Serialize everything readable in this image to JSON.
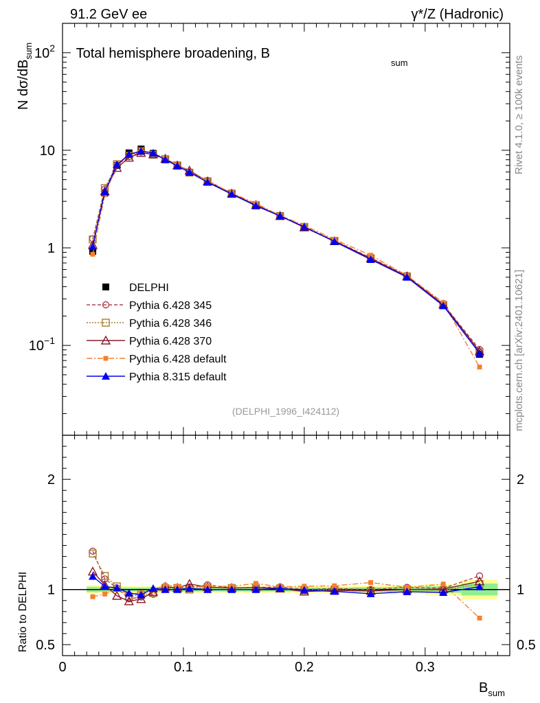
{
  "header": {
    "left": "91.2 GeV ee",
    "right": "γ*/Z (Hadronic)"
  },
  "side": {
    "rivet": "Rivet 4.1.0, ≥ 100k events",
    "mcplots": "mcplots.cern.ch [arXiv:2401.10621]"
  },
  "chart_data": {
    "type": "line",
    "title": "Total hemisphere broadening, B",
    "title_sub": "sum",
    "ylabel": "N  dσ/dB",
    "ylabel_sub": "sum",
    "xlabel": "B",
    "xlabel_sub": "sum",
    "analysis_tag": "(DELPHI_1996_I424112)",
    "xlim": [
      0,
      0.37
    ],
    "ylim": [
      0.012,
      200
    ],
    "yscale": "log",
    "x_ticks": [
      "0",
      "0.1",
      "0.2",
      "0.3"
    ],
    "y_ticks": [
      "10^-1",
      "1",
      "10",
      "10^2"
    ],
    "x": [
      0.025,
      0.035,
      0.045,
      0.055,
      0.065,
      0.075,
      0.085,
      0.095,
      0.105,
      0.12,
      0.14,
      0.16,
      0.18,
      0.2,
      0.225,
      0.255,
      0.285,
      0.315,
      0.345
    ],
    "data": {
      "name": "DELPHI",
      "values": [
        0.92,
        3.65,
        7.0,
        9.4,
        10.3,
        9.3,
        8.0,
        6.9,
        5.9,
        4.7,
        3.55,
        2.7,
        2.1,
        1.65,
        1.18,
        0.79,
        0.51,
        0.262,
        0.081
      ],
      "color": "#000000"
    },
    "series": [
      {
        "name": "Pythia 6.428 345",
        "color": "#b04050",
        "marker": "circle-open",
        "dash": "5,3",
        "values": [
          1.24,
          4.0,
          7.1,
          8.6,
          9.6,
          8.9,
          8.2,
          7.0,
          6.0,
          4.9,
          3.6,
          2.75,
          2.15,
          1.65,
          1.19,
          0.79,
          0.52,
          0.265,
          0.091
        ]
      },
      {
        "name": "Pythia 6.428 346",
        "color": "#a67a2a",
        "marker": "square-open",
        "dash": "2,2",
        "values": [
          1.22,
          4.1,
          7.2,
          8.8,
          9.8,
          9.0,
          8.1,
          7.0,
          5.9,
          4.8,
          3.6,
          2.75,
          2.12,
          1.64,
          1.18,
          0.78,
          0.51,
          0.26,
          0.085
        ]
      },
      {
        "name": "Pythia 6.428 370",
        "color": "#8b1a2a",
        "marker": "triangle-open",
        "dash": "",
        "values": [
          1.07,
          3.8,
          6.6,
          8.4,
          9.4,
          9.1,
          8.2,
          7.0,
          6.2,
          4.8,
          3.6,
          2.75,
          2.12,
          1.62,
          1.17,
          0.78,
          0.51,
          0.263,
          0.087
        ]
      },
      {
        "name": "Pythia 6.428 default",
        "color": "#f47f30",
        "marker": "square-filled",
        "dash": "8,3,2,3",
        "values": [
          0.86,
          3.5,
          7.0,
          9.0,
          10.0,
          9.3,
          8.3,
          7.1,
          6.0,
          4.85,
          3.65,
          2.85,
          2.15,
          1.7,
          1.22,
          0.84,
          0.52,
          0.275,
          0.06
        ]
      },
      {
        "name": "Pythia 8.315 default",
        "color": "#0000ee",
        "marker": "triangle-filled",
        "dash": "",
        "values": [
          1.03,
          3.75,
          7.1,
          9.1,
          9.8,
          9.4,
          8.0,
          6.9,
          5.95,
          4.7,
          3.55,
          2.7,
          2.12,
          1.64,
          1.16,
          0.76,
          0.5,
          0.255,
          0.083
        ]
      }
    ],
    "ratio": {
      "ylabel": "Ratio to DELPHI",
      "ylim": [
        0.4,
        2.4
      ],
      "y_ticks": [
        "0.5",
        "1",
        "2"
      ],
      "y_ticks_right": [
        "0.5",
        "1",
        "2"
      ],
      "band_half_width": [
        0.04,
        0.035,
        0.03,
        0.03,
        0.03,
        0.03,
        0.03,
        0.03,
        0.03,
        0.03,
        0.03,
        0.03,
        0.03,
        0.03,
        0.03,
        0.035,
        0.04,
        0.05,
        0.09
      ]
    },
    "legend_position": "middle-left"
  }
}
